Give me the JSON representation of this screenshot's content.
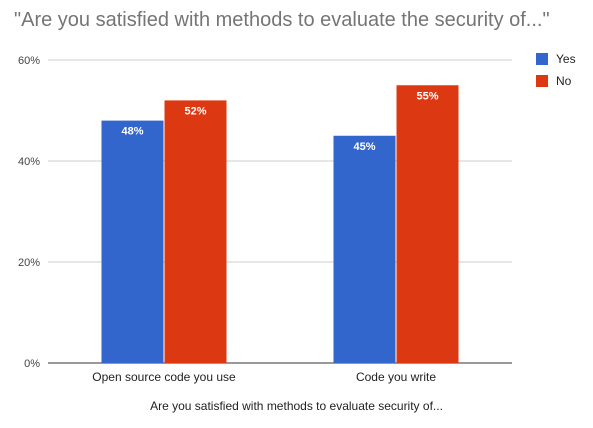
{
  "chart_data": {
    "type": "bar",
    "title": "\"Are you satisfied with methods to evaluate the security of...\"",
    "xlabel": "Are you satisfied with methods to evaluate security of...",
    "ylabel": "",
    "categories": [
      "Open source code you use",
      "Code you write"
    ],
    "series": [
      {
        "name": "Yes",
        "color": "#3366cc",
        "values": [
          48,
          45
        ],
        "labels": [
          "48%",
          "45%"
        ]
      },
      {
        "name": "No",
        "color": "#dc3912",
        "values": [
          52,
          55
        ],
        "labels": [
          "52%",
          "55%"
        ]
      }
    ],
    "ylim": [
      0,
      60
    ],
    "yticks": [
      0,
      20,
      40,
      60
    ],
    "ytick_labels": [
      "0%",
      "20%",
      "40%",
      "60%"
    ],
    "grid": true,
    "legend": "right"
  }
}
